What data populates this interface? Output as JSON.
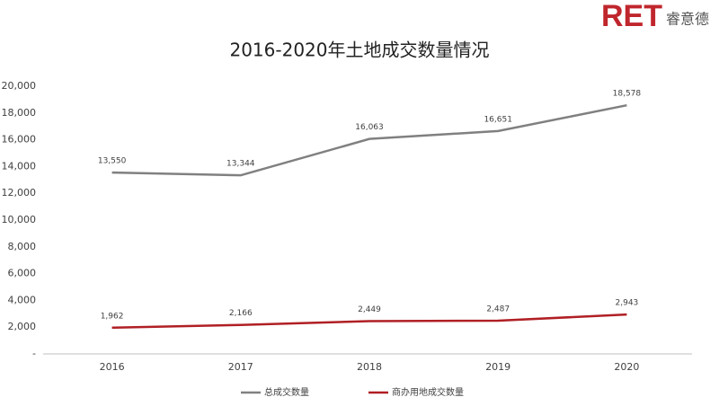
{
  "logo": {
    "mark": "RET",
    "name": "睿意德"
  },
  "chart_data": {
    "type": "line",
    "title": "2016-2020年土地成交数量情况",
    "categories": [
      "2016",
      "2017",
      "2018",
      "2019",
      "2020"
    ],
    "series": [
      {
        "name": "总成交数量",
        "color": "#808080",
        "values": [
          13550,
          13344,
          16063,
          16651,
          18578
        ],
        "value_labels": [
          "13,550",
          "13,344",
          "16,063",
          "16,651",
          "18,578"
        ]
      },
      {
        "name": "商办用地成交数量",
        "color": "#b01f24",
        "values": [
          1962,
          2166,
          2449,
          2487,
          2943
        ],
        "value_labels": [
          "1,962",
          "2,166",
          "2,449",
          "2,487",
          "2,943"
        ]
      }
    ],
    "ylim": [
      0,
      20000
    ],
    "yticks": [
      {
        "value": 0,
        "label": "-"
      },
      {
        "value": 2000,
        "label": "2,000"
      },
      {
        "value": 4000,
        "label": "4,000"
      },
      {
        "value": 6000,
        "label": "6,000"
      },
      {
        "value": 8000,
        "label": "8,000"
      },
      {
        "value": 10000,
        "label": "10,000"
      },
      {
        "value": 12000,
        "label": "12,000"
      },
      {
        "value": 14000,
        "label": "14,000"
      },
      {
        "value": 16000,
        "label": "16,000"
      },
      {
        "value": 18000,
        "label": "18,000"
      },
      {
        "value": 20000,
        "label": "20,000"
      }
    ],
    "grid": false,
    "legend": "bottom"
  }
}
